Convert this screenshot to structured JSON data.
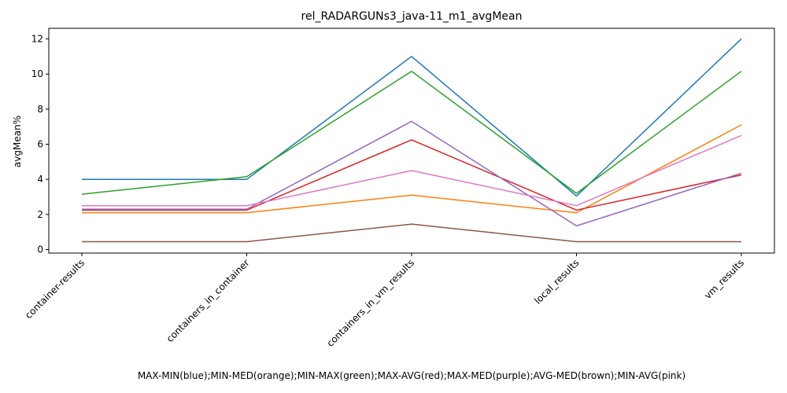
{
  "chart_data": {
    "type": "line",
    "title": "rel_RADARGUNs3_java-11_m1_avgMean",
    "xlabel": "MAX-MIN(blue);MIN-MED(orange);MIN-MAX(green);MAX-AVG(red);MAX-MED(purple);AVG-MED(brown);MIN-AVG(pink)",
    "ylabel": "avgMean%",
    "categories": [
      "container-results",
      "containers_in_container",
      "containers_in_vm_results",
      "local_results",
      "vm_results"
    ],
    "ylim": [
      -0.2,
      12.6
    ],
    "yticks": [
      0,
      2,
      4,
      6,
      8,
      10,
      12
    ],
    "grid": false,
    "series": [
      {
        "color": "#1f77b4",
        "values": [
          4.0,
          4.0,
          11.0,
          3.05,
          12.0
        ]
      },
      {
        "color": "#ff7f0e",
        "values": [
          2.1,
          2.1,
          3.1,
          2.1,
          7.1
        ]
      },
      {
        "color": "#2ca02c",
        "values": [
          3.15,
          4.15,
          10.15,
          3.2,
          10.15
        ]
      },
      {
        "color": "#d62728",
        "values": [
          2.25,
          2.25,
          6.25,
          2.25,
          4.25
        ]
      },
      {
        "color": "#9467bd",
        "values": [
          2.3,
          2.3,
          7.3,
          1.35,
          4.35
        ]
      },
      {
        "color": "#8c564b",
        "values": [
          0.45,
          0.45,
          1.45,
          0.45,
          0.45
        ]
      },
      {
        "color": "#e377c2",
        "values": [
          2.5,
          2.5,
          4.5,
          2.5,
          6.5
        ]
      }
    ]
  }
}
